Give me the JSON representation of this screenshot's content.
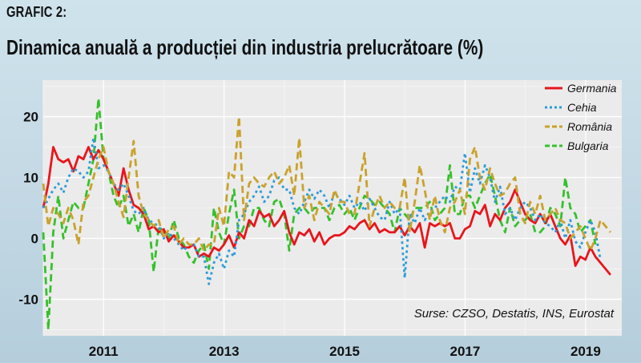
{
  "header": {
    "label": "GRAFIC 2:",
    "title": "Dinamica anuală a producției din industria prelucrătoare (%)"
  },
  "chart_data": {
    "type": "line",
    "title": "Dinamica anuală a producției din industria prelucrătoare (%)",
    "xlabel": "",
    "ylabel": "",
    "xlim": [
      2010.0,
      2019.6
    ],
    "ylim": [
      -16,
      26
    ],
    "x_ticks": [
      "2011",
      "2013",
      "2015",
      "2017",
      "2019"
    ],
    "y_ticks": [
      "20",
      "10",
      "0",
      "-10"
    ],
    "grid": true,
    "legend_position": "top-right",
    "source": "Surse: CZSO, Destatis, INS, Eurostat",
    "series": [
      {
        "name": "Germania",
        "color": "#e8151c",
        "dash": "solid",
        "x_start": 2010.0,
        "step": 0.0833,
        "values": [
          5,
          9,
          15,
          13,
          12.5,
          13,
          11,
          13.5,
          13,
          15,
          13,
          14.5,
          13,
          11,
          9,
          7,
          11.5,
          8,
          5.5,
          5,
          4,
          1.5,
          2,
          1,
          1.5,
          -0.5,
          0.5,
          -0.5,
          -1.5,
          -1.5,
          -1,
          -3,
          -2.5,
          -3,
          -1.5,
          -2,
          -1,
          0.5,
          -1.5,
          1,
          0,
          3,
          2,
          4.5,
          3.5,
          4,
          2,
          3,
          4.5,
          1,
          -1,
          1,
          0.5,
          1.5,
          -0.5,
          1,
          -1,
          0,
          0.5,
          0.5,
          1,
          2,
          1.5,
          2.5,
          3,
          1.5,
          2.5,
          1,
          1.5,
          1,
          1,
          2,
          0.5,
          2,
          1,
          2.5,
          -1.5,
          2.5,
          2,
          2.5,
          2,
          2.5,
          0,
          0,
          1.5,
          2,
          4.5,
          4,
          5.5,
          2,
          4,
          3,
          5,
          6,
          8,
          6,
          4,
          3,
          2.5,
          4,
          2.5,
          4,
          2,
          0,
          -1,
          0.5,
          -4.5,
          -3,
          -3.5,
          -1.5,
          -3,
          -4,
          -5,
          -6
        ]
      },
      {
        "name": "Cehia",
        "color": "#2a9bd8",
        "dash": "3,4",
        "x_start": 2010.0,
        "step": 0.0833,
        "values": [
          5,
          6.5,
          8,
          9,
          7.5,
          10,
          11.5,
          11,
          10,
          11,
          16.5,
          11.5,
          12,
          11,
          9,
          8,
          9,
          7,
          4.5,
          4,
          5,
          3,
          2.5,
          2,
          0,
          1,
          0,
          -1,
          -2,
          -1,
          -1,
          -3,
          -3,
          -7.5,
          -4,
          -2.5,
          -5,
          -2,
          -3,
          3,
          4,
          6,
          7,
          8.5,
          6,
          7,
          9.5,
          10,
          8,
          8,
          5,
          4,
          6,
          8,
          6.5,
          8,
          7,
          5,
          7.5,
          6.5,
          5.5,
          7,
          5,
          6,
          4.5,
          6.5,
          5,
          3.5,
          3,
          6,
          4,
          5,
          -6.5,
          4,
          2.5,
          5,
          3,
          4.5,
          5,
          6,
          7,
          6,
          8.5,
          8,
          14,
          7.5,
          11.5,
          9,
          12,
          10,
          6,
          8.5,
          4,
          5,
          3,
          5,
          6,
          5,
          3,
          4,
          2.5,
          2,
          1,
          3,
          0,
          3,
          -0.5,
          -1.5,
          1,
          3,
          1,
          -3.5
        ]
      },
      {
        "name": "România",
        "color": "#c9a22c",
        "dash": "9,5",
        "x_start": 2010.0,
        "step": 0.0833,
        "values": [
          9,
          2,
          5,
          4,
          2.5,
          5,
          3,
          -1,
          6,
          7,
          10,
          13,
          15,
          11,
          9,
          6,
          3.5,
          10,
          16,
          7,
          4,
          3,
          2,
          3,
          0,
          1.5,
          2,
          -1,
          0,
          -1,
          -1,
          0,
          -2,
          -1,
          -1,
          5,
          2,
          11,
          10,
          20,
          3,
          9,
          10,
          9,
          8.5,
          10,
          11,
          9,
          10,
          12,
          7,
          16.5,
          5,
          7,
          3,
          6,
          5,
          4,
          8,
          6,
          6,
          4,
          4,
          9,
          14,
          2,
          5,
          7,
          5,
          6,
          5,
          5,
          10,
          1,
          6,
          12,
          8,
          3,
          7,
          3,
          1,
          5,
          6,
          8,
          4,
          13,
          15,
          10,
          8,
          11.5,
          9,
          7,
          7.5,
          9,
          10,
          4,
          2.5,
          6,
          4,
          7,
          3,
          4,
          5,
          3,
          2.5,
          0,
          1,
          2,
          0,
          -2,
          0,
          3,
          2,
          1
        ]
      },
      {
        "name": "Bulgaria",
        "color": "#36c02c",
        "dash": "9,5",
        "x_start": 2010.0,
        "step": 0.0833,
        "values": [
          1,
          -15,
          1,
          7,
          0,
          3,
          6,
          5,
          5,
          9,
          13,
          23,
          13,
          11,
          7,
          5,
          7,
          2,
          4,
          1,
          5,
          3,
          -5.5,
          2,
          1,
          0,
          3,
          0,
          -1,
          -3,
          -4,
          -2,
          -1,
          -5,
          5,
          1,
          -1,
          4,
          8,
          0,
          2,
          2,
          5,
          5,
          3,
          2,
          6,
          6.5,
          4,
          -2,
          4,
          5,
          5,
          4,
          5,
          5,
          5,
          3,
          5,
          5.5,
          4,
          5,
          3,
          5,
          7,
          6.5,
          5.5,
          6,
          5,
          4,
          1,
          5,
          4,
          3,
          5,
          5,
          5,
          6,
          3,
          4,
          5,
          12,
          4,
          4,
          7,
          7,
          5,
          7,
          9,
          10.5,
          7,
          3,
          1,
          5,
          2,
          3,
          3,
          4,
          1,
          1,
          2,
          5,
          4,
          2,
          10,
          5,
          4,
          1,
          2,
          3,
          -1
        ]
      }
    ]
  }
}
